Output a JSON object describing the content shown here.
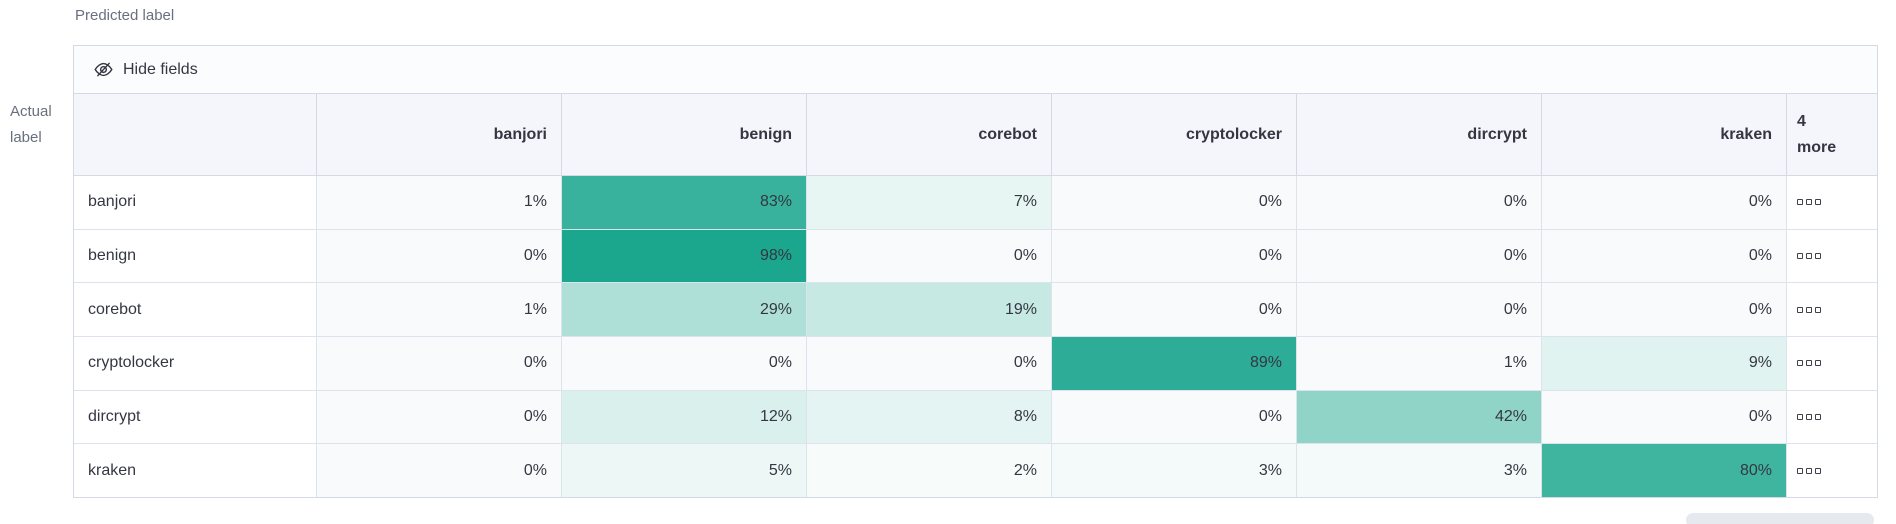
{
  "labels": {
    "predicted": "Predicted label",
    "actual": "Actual label"
  },
  "toolbar": {
    "hide_fields": "Hide fields",
    "icon": "eye-closed-icon"
  },
  "chart_data": {
    "type": "heatmap",
    "x_axis_label": "Predicted label",
    "y_axis_label": "Actual label",
    "columns": [
      "banjori",
      "benign",
      "corebot",
      "cryptolocker",
      "dircrypt",
      "kraken"
    ],
    "rows": [
      "banjori",
      "benign",
      "corebot",
      "cryptolocker",
      "dircrypt",
      "kraken"
    ],
    "values_pct": [
      [
        1,
        83,
        7,
        0,
        0,
        0
      ],
      [
        0,
        98,
        0,
        0,
        0,
        0
      ],
      [
        1,
        29,
        19,
        0,
        0,
        0
      ],
      [
        0,
        0,
        0,
        89,
        1,
        9
      ],
      [
        0,
        12,
        8,
        0,
        42,
        0
      ],
      [
        0,
        5,
        2,
        3,
        3,
        80
      ]
    ],
    "value_suffix": "%",
    "more_columns_label": "4\nmore",
    "hidden_cell_icon": "boxes-horizontal-icon",
    "legend": "none",
    "grid": "on"
  },
  "colors": {
    "accent": "#17a58c",
    "zero_cell_bg": "#f8fafc",
    "header_bg": "#f4f6fb",
    "toolbar_bg": "#fbfcfd",
    "border": "#d3dae6",
    "text": "#343741",
    "muted_text": "#69707d",
    "scrollbar_thumb": "#e6e9ee"
  }
}
